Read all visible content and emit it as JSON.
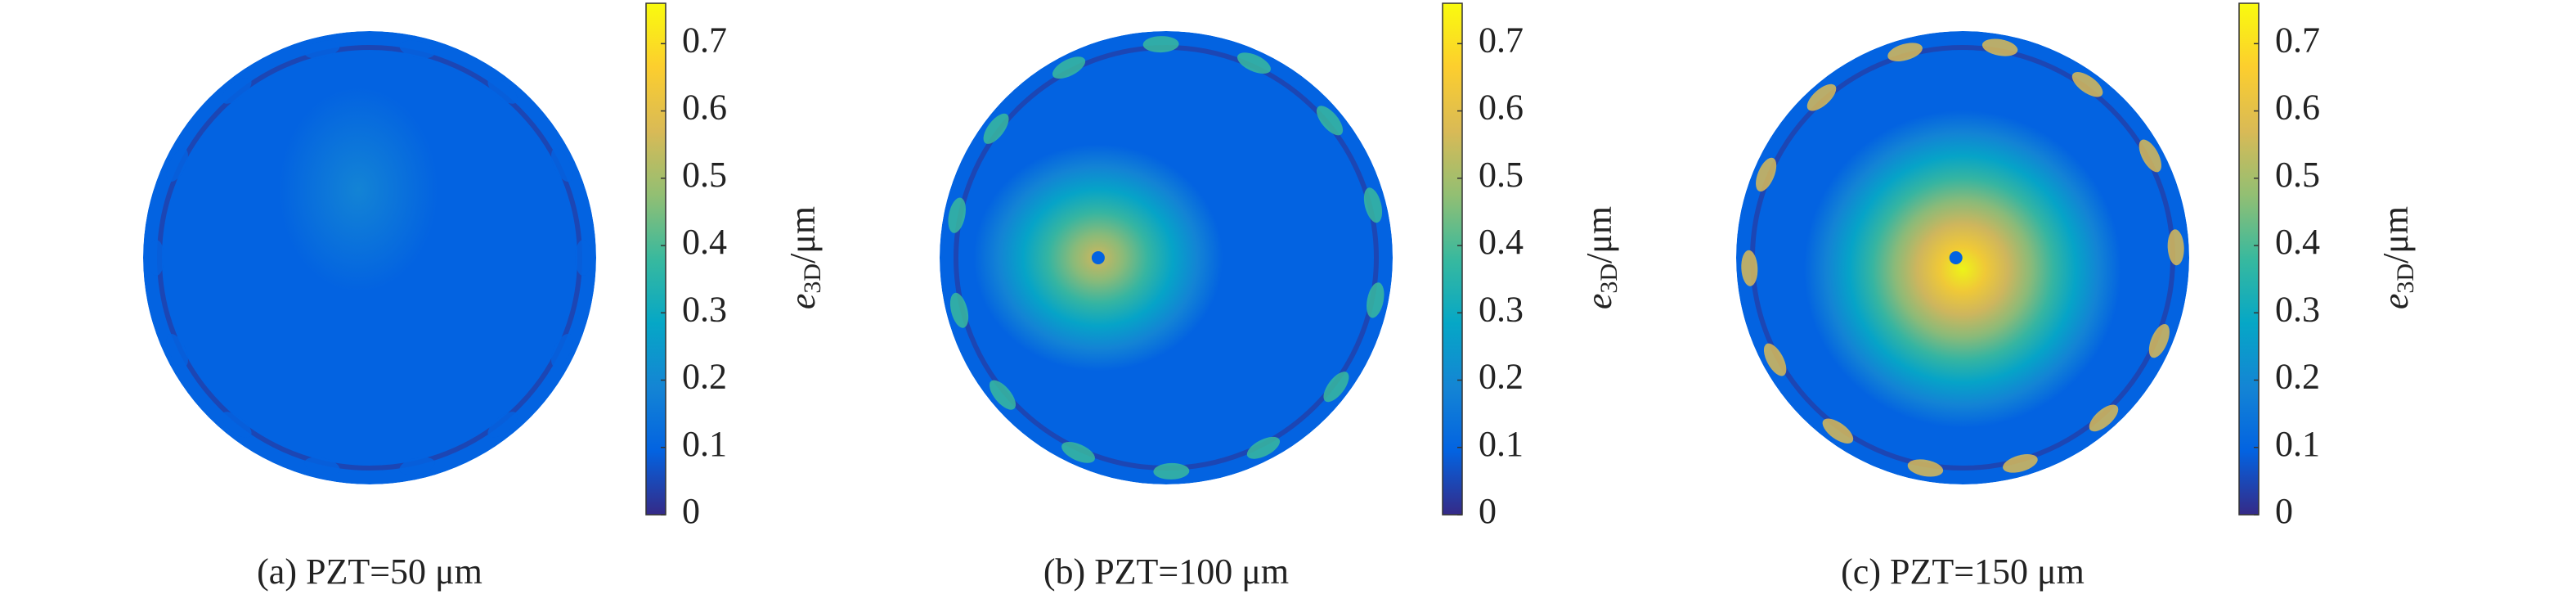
{
  "chart_data": [
    {
      "type": "heatmap",
      "caption": "(a) PZT=50 μm",
      "colorbar_label": {
        "symbol": "e",
        "subscript": "3D",
        "unit": "/μm"
      },
      "clim": [
        0,
        0.76
      ],
      "cticks": [
        0,
        0.1,
        0.2,
        0.3,
        0.4,
        0.5,
        0.6,
        0.7
      ],
      "colormap": [
        "#352a87",
        "#0363e1",
        "#1485d4",
        "#06a7c6",
        "#38b99e",
        "#92bf73",
        "#d9ba56",
        "#fcce2e",
        "#f9fb0e"
      ]
    },
    {
      "type": "heatmap",
      "caption": "(b) PZT=100 μm",
      "colorbar_label": {
        "symbol": "e",
        "subscript": "3D",
        "unit": "/μm"
      },
      "clim": [
        0,
        0.76
      ],
      "cticks": [
        0,
        0.1,
        0.2,
        0.3,
        0.4,
        0.5,
        0.6,
        0.7
      ],
      "colormap": [
        "#352a87",
        "#0363e1",
        "#1485d4",
        "#06a7c6",
        "#38b99e",
        "#92bf73",
        "#d9ba56",
        "#fcce2e",
        "#f9fb0e"
      ]
    },
    {
      "type": "heatmap",
      "caption": "(c) PZT=150 μm",
      "colorbar_label": {
        "symbol": "e",
        "subscript": "3D",
        "unit": "/μm"
      },
      "clim": [
        0,
        0.76
      ],
      "cticks": [
        0,
        0.1,
        0.2,
        0.3,
        0.4,
        0.5,
        0.6,
        0.7
      ],
      "colormap": [
        "#352a87",
        "#0363e1",
        "#1485d4",
        "#06a7c6",
        "#38b99e",
        "#92bf73",
        "#d9ba56",
        "#fcce2e",
        "#f9fb0e"
      ]
    }
  ]
}
